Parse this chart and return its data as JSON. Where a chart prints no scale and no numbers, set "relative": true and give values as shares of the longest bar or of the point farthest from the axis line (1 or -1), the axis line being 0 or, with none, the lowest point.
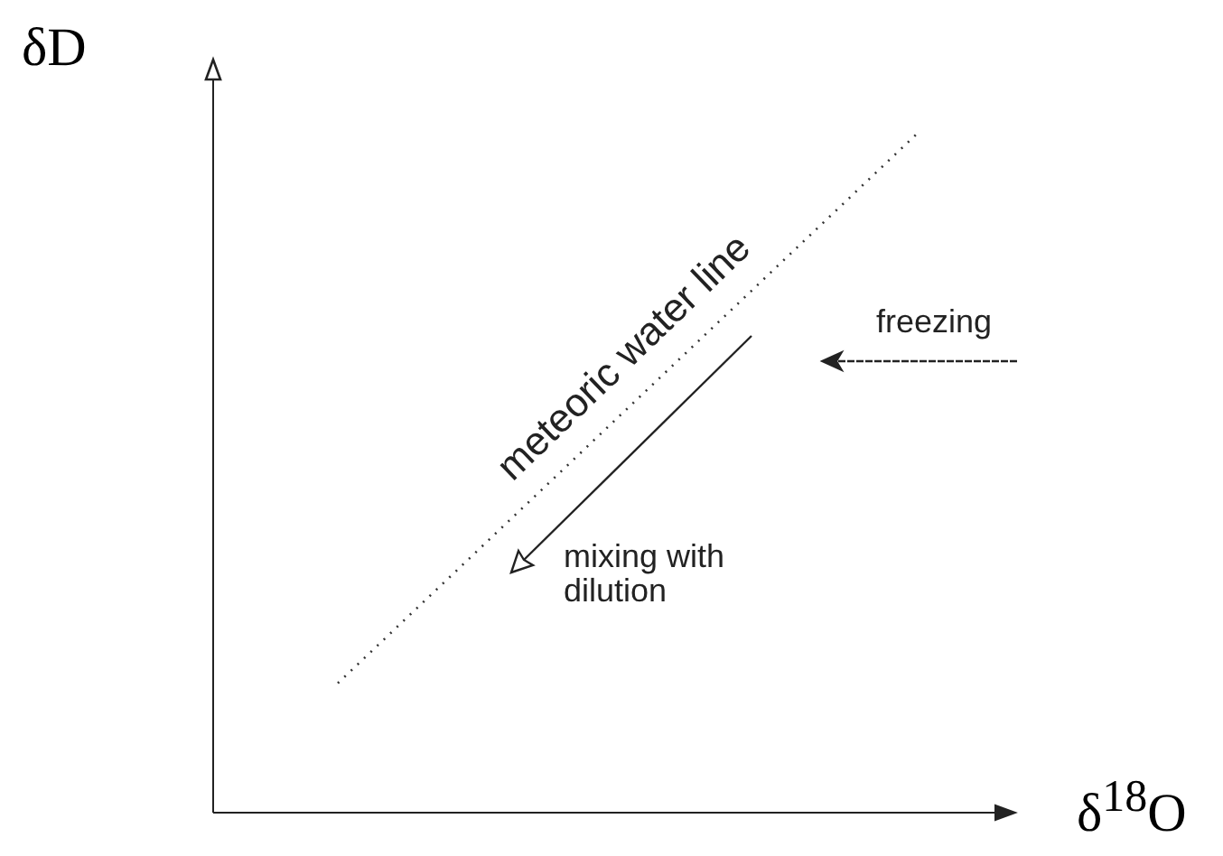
{
  "chart_data": {
    "type": "line",
    "relative": true,
    "xlabel": "δ$^{18}$O",
    "ylabel": "δD",
    "categories": [
      null,
      null,
      null,
      null,
      null,
      null,
      null,
      null,
      null,
      null,
      null,
      null,
      null,
      null,
      null,
      null,
      null,
      null,
      null,
      null
    ],
    "series": [
      {
        "color": "#333333",
        "values": [
          null,
          null,
          null,
          0.19,
          null,
          null,
          null,
          null,
          null,
          null,
          null,
          null,
          null,
          null,
          null,
          null,
          null,
          1,
          null,
          null
        ]
      }
    ],
    "line_style": "dotted",
    "marker": "none",
    "annotations": [
      "meteoric water line",
      "freezing",
      "mixing with dilution"
    ]
  }
}
